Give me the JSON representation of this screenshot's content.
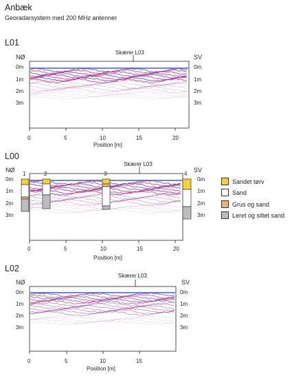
{
  "title": "Anbæk",
  "subtitle": "Georadarsystem med 200 MHz antenner",
  "profiles": [
    {
      "name": "L01",
      "left_label": "NØ",
      "right_label": "SV",
      "crossing_label": "Skærer L03",
      "depth_left": [
        "0m",
        "1m",
        "2m",
        "3m"
      ],
      "depth_right": [
        "0m",
        "1m",
        "2m",
        "3m"
      ],
      "x_ticks": [
        "0",
        "5",
        "10",
        "15",
        "20"
      ],
      "x_label": "Position [m]"
    },
    {
      "name": "L00",
      "left_label": "NØ",
      "right_label": "SV",
      "crossing_label": "Skærer L03",
      "depth_left": [
        "0m",
        "1m",
        "2m",
        "3m"
      ],
      "depth_right": [
        "0m",
        "1m",
        "2m",
        "3m"
      ],
      "x_ticks": [
        "0",
        "5",
        "10",
        "15",
        "20"
      ],
      "x_label": "Position [m]",
      "boreholes": [
        {
          "label": "1",
          "x": 0
        },
        {
          "label": "2",
          "x": 2.3
        },
        {
          "label": "3",
          "x": 10.5
        },
        {
          "label": "4",
          "x": 21.2
        }
      ]
    },
    {
      "name": "L02",
      "left_label": "NØ",
      "right_label": "SV",
      "crossing_label": "Skærer L03",
      "depth_left": [
        "0m",
        "1m",
        "2m",
        "3m"
      ],
      "depth_right": [
        "0m",
        "1m",
        "2m",
        "3m"
      ],
      "x_ticks": [
        "0",
        "5",
        "10",
        "15"
      ],
      "x_label": "Position [m]"
    }
  ],
  "legend": [
    {
      "label": "Sandet tørv",
      "color": "#f3d23a"
    },
    {
      "label": "Sand",
      "color": "#ffffff"
    },
    {
      "label": "Grus og sand",
      "color": "#f0b07a"
    },
    {
      "label": "Leret og siltet sand",
      "color": "#bdbdbd"
    }
  ]
}
